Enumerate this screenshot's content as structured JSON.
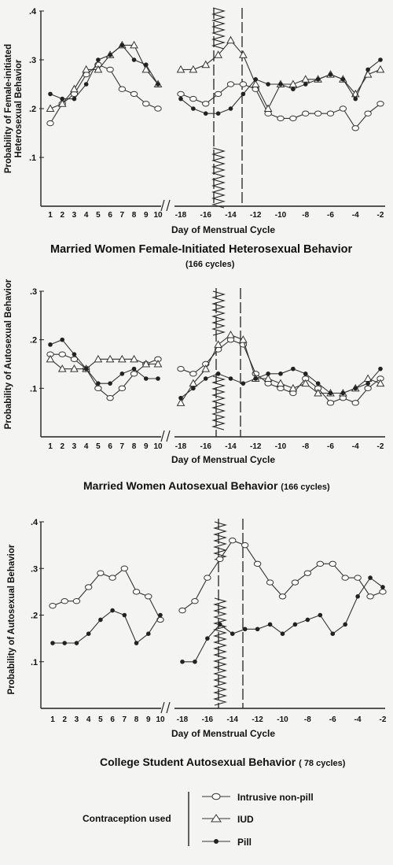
{
  "legend": {
    "title": "Contraception used",
    "entries": [
      {
        "name": "Intrusive non-pill",
        "marker": "ellipse"
      },
      {
        "name": "IUD",
        "marker": "triangle"
      },
      {
        "name": "Pill",
        "marker": "dot"
      }
    ]
  },
  "chart_data": [
    {
      "type": "line",
      "ylabel": "Probability of Female-initiated Heterosexual Behavior",
      "xlabel": "Day of Menstrual Cycle",
      "title": "Married Women Female-Initiated Heterosexual Behavior",
      "subtitle": "(166 cycles)",
      "ylim": [
        0,
        0.4
      ],
      "yticks": [
        ".1",
        ".2",
        ".3",
        ".4"
      ],
      "x_left_ticks": [
        "1",
        "2",
        "3",
        "4",
        "5",
        "6",
        "7",
        "8",
        "9",
        "10"
      ],
      "x_right_ticks": [
        "-18",
        "-16",
        "-14",
        "-12",
        "-10",
        "-8",
        "-6",
        "-4",
        "-2"
      ],
      "series": [
        {
          "marker": "ellipse",
          "left": [
            0.17,
            0.21,
            0.23,
            0.27,
            0.29,
            0.28,
            0.24,
            0.23,
            0.21,
            0.2
          ],
          "right": [
            0.23,
            0.22,
            0.21,
            0.23,
            0.25,
            0.25,
            0.24,
            0.19,
            0.18,
            0.18,
            0.19,
            0.19,
            0.19,
            0.2,
            0.16,
            0.19,
            0.21
          ]
        },
        {
          "marker": "triangle",
          "left": [
            0.2,
            0.21,
            0.24,
            0.28,
            0.28,
            0.31,
            0.33,
            0.33,
            0.28,
            0.25
          ],
          "right": [
            0.28,
            0.28,
            0.29,
            0.31,
            0.34,
            0.31,
            0.25,
            0.2,
            0.25,
            0.25,
            0.26,
            0.26,
            0.27,
            0.26,
            0.23,
            0.27,
            0.28
          ]
        },
        {
          "marker": "dot",
          "left": [
            0.23,
            0.22,
            0.22,
            0.25,
            0.3,
            0.31,
            0.33,
            0.3,
            0.29,
            0.25
          ],
          "right": [
            0.22,
            0.2,
            0.19,
            0.19,
            0.2,
            0.23,
            0.26,
            0.25,
            0.25,
            0.24,
            0.25,
            0.26,
            0.27,
            0.26,
            0.22,
            0.28,
            0.3
          ]
        }
      ]
    },
    {
      "type": "line",
      "ylabel": "Probability of Autosexual Behavior",
      "xlabel": "Day of Menstrual Cycle",
      "title": "Married Women Autosexual Behavior",
      "subtitle": "(166 cycles)",
      "ylim": [
        0,
        0.3
      ],
      "yticks": [
        ".1",
        ".2",
        ".3"
      ],
      "x_left_ticks": [
        "1",
        "2",
        "3",
        "4",
        "5",
        "6",
        "7",
        "8",
        "9",
        "10"
      ],
      "x_right_ticks": [
        "-18",
        "-16",
        "-14",
        "-12",
        "-10",
        "-8",
        "-6",
        "-4",
        "-2"
      ],
      "series": [
        {
          "marker": "ellipse",
          "left": [
            0.17,
            0.17,
            0.16,
            0.14,
            0.1,
            0.08,
            0.1,
            0.13,
            0.15,
            0.16
          ],
          "right": [
            0.14,
            0.13,
            0.15,
            0.18,
            0.2,
            0.19,
            0.13,
            0.11,
            0.1,
            0.09,
            0.12,
            0.1,
            0.07,
            0.08,
            0.07,
            0.1,
            0.12
          ]
        },
        {
          "marker": "triangle",
          "left": [
            0.16,
            0.14,
            0.14,
            0.14,
            0.16,
            0.16,
            0.16,
            0.16,
            0.15,
            0.15
          ],
          "right": [
            0.07,
            0.11,
            0.14,
            0.19,
            0.21,
            0.2,
            0.12,
            0.12,
            0.11,
            0.1,
            0.11,
            0.09,
            0.09,
            0.09,
            0.1,
            0.12,
            0.11
          ]
        },
        {
          "marker": "dot",
          "left": [
            0.19,
            0.2,
            0.17,
            0.14,
            0.11,
            0.11,
            0.13,
            0.14,
            0.12,
            0.12
          ],
          "right": [
            0.08,
            0.1,
            0.12,
            0.13,
            0.12,
            0.11,
            0.12,
            0.13,
            0.13,
            0.14,
            0.13,
            0.11,
            0.09,
            0.09,
            0.1,
            0.11,
            0.14
          ]
        }
      ]
    },
    {
      "type": "line",
      "ylabel": "Probability of Autosexual Behavior",
      "xlabel": "Day of Menstrual Cycle",
      "title": "College Student Autosexual Behavior",
      "subtitle": "( 78 cycles)",
      "ylim": [
        0,
        0.4
      ],
      "yticks": [
        ".1",
        ".2",
        ".3",
        ".4"
      ],
      "x_left_ticks": [
        "1",
        "2",
        "3",
        "4",
        "5",
        "6",
        "7",
        "8",
        "9",
        "10"
      ],
      "x_right_ticks": [
        "-18",
        "-16",
        "-14",
        "-12",
        "-10",
        "-8",
        "-6",
        "-4",
        "-2"
      ],
      "series": [
        {
          "marker": "ellipse",
          "left": [
            0.22,
            0.23,
            0.23,
            0.26,
            0.29,
            0.28,
            0.3,
            0.25,
            0.24,
            0.19
          ],
          "right": [
            0.21,
            0.23,
            0.28,
            0.32,
            0.36,
            0.35,
            0.31,
            0.27,
            0.24,
            0.27,
            0.29,
            0.31,
            0.31,
            0.28,
            0.28,
            0.24,
            0.25
          ]
        },
        {
          "marker": "dot",
          "left": [
            0.14,
            0.14,
            0.14,
            0.16,
            0.19,
            0.21,
            0.2,
            0.14,
            0.16,
            0.2
          ],
          "right": [
            0.1,
            0.1,
            0.15,
            0.18,
            0.16,
            0.17,
            0.17,
            0.18,
            0.16,
            0.18,
            0.19,
            0.2,
            0.16,
            0.18,
            0.24,
            0.28,
            0.26
          ]
        }
      ]
    }
  ]
}
